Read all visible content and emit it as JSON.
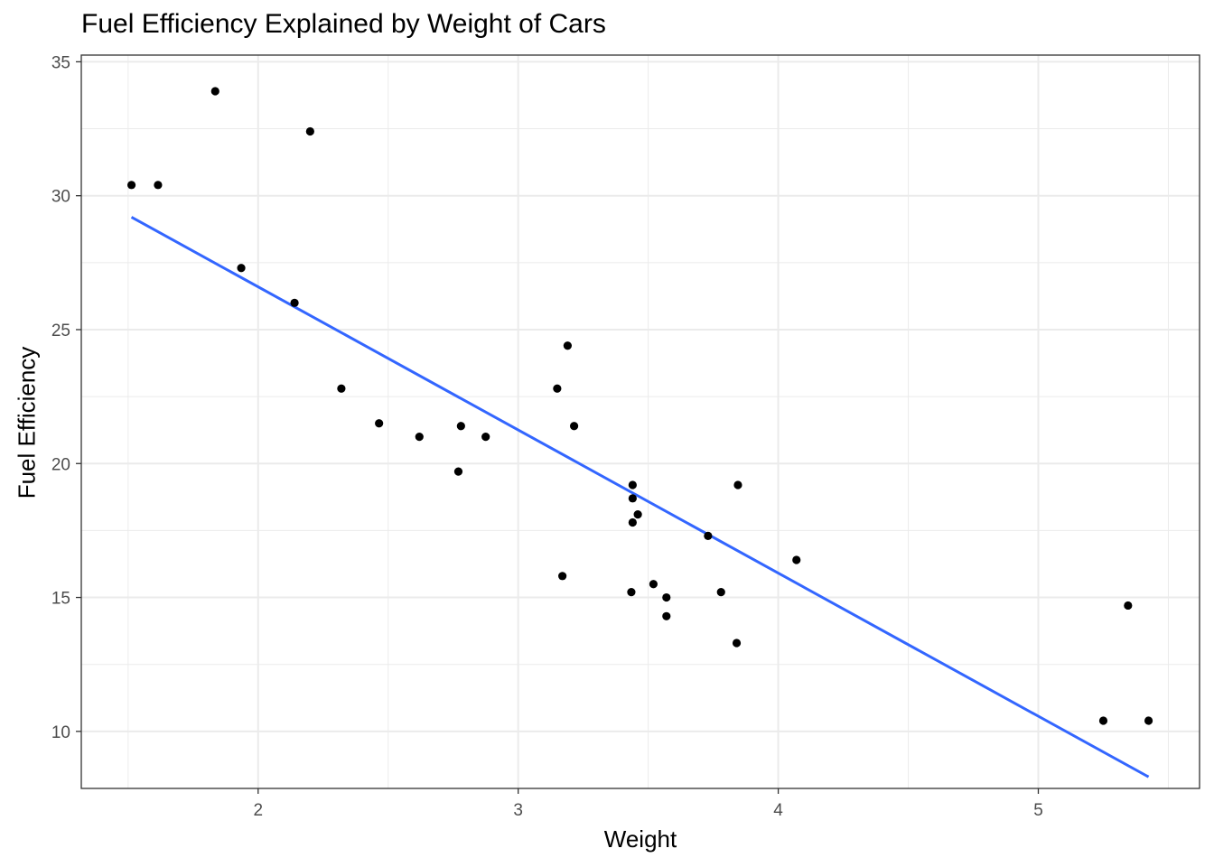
{
  "chart_data": {
    "type": "scatter",
    "title": "Fuel Efficiency Explained by Weight of Cars",
    "xlabel": "Weight",
    "ylabel": "Fuel Efficiency",
    "xlim": [
      1.32,
      5.62
    ],
    "ylim": [
      7.87,
      35.25
    ],
    "x_ticks": [
      "2",
      "3",
      "4",
      "5"
    ],
    "x_tick_values": [
      2,
      3,
      4,
      5
    ],
    "y_ticks": [
      "10",
      "15",
      "20",
      "25",
      "30",
      "35"
    ],
    "y_tick_values": [
      10,
      15,
      20,
      25,
      30,
      35
    ],
    "grid": true,
    "points": [
      {
        "x": 2.62,
        "y": 21.0
      },
      {
        "x": 2.875,
        "y": 21.0
      },
      {
        "x": 2.32,
        "y": 22.8
      },
      {
        "x": 3.215,
        "y": 21.4
      },
      {
        "x": 3.44,
        "y": 18.7
      },
      {
        "x": 3.46,
        "y": 18.1
      },
      {
        "x": 3.57,
        "y": 14.3
      },
      {
        "x": 3.19,
        "y": 24.4
      },
      {
        "x": 3.15,
        "y": 22.8
      },
      {
        "x": 3.44,
        "y": 19.2
      },
      {
        "x": 3.44,
        "y": 17.8
      },
      {
        "x": 4.07,
        "y": 16.4
      },
      {
        "x": 3.73,
        "y": 17.3
      },
      {
        "x": 3.78,
        "y": 15.2
      },
      {
        "x": 5.25,
        "y": 10.4
      },
      {
        "x": 5.424,
        "y": 10.4
      },
      {
        "x": 5.345,
        "y": 14.7
      },
      {
        "x": 2.2,
        "y": 32.4
      },
      {
        "x": 1.615,
        "y": 30.4
      },
      {
        "x": 1.835,
        "y": 33.9
      },
      {
        "x": 2.465,
        "y": 21.5
      },
      {
        "x": 3.52,
        "y": 15.5
      },
      {
        "x": 3.435,
        "y": 15.2
      },
      {
        "x": 3.84,
        "y": 13.3
      },
      {
        "x": 3.845,
        "y": 19.2
      },
      {
        "x": 1.935,
        "y": 27.3
      },
      {
        "x": 2.14,
        "y": 26.0
      },
      {
        "x": 1.513,
        "y": 30.4
      },
      {
        "x": 3.17,
        "y": 15.8
      },
      {
        "x": 2.77,
        "y": 19.7
      },
      {
        "x": 3.57,
        "y": 15.0
      },
      {
        "x": 2.78,
        "y": 21.4
      }
    ],
    "trend_line": {
      "x": [
        1.513,
        5.424
      ],
      "y": [
        29.2,
        8.3
      ]
    },
    "colors": {
      "points": "#000000",
      "trend_line": "#3366ff",
      "grid": "#ebebeb",
      "panel_border": "#333333"
    }
  }
}
